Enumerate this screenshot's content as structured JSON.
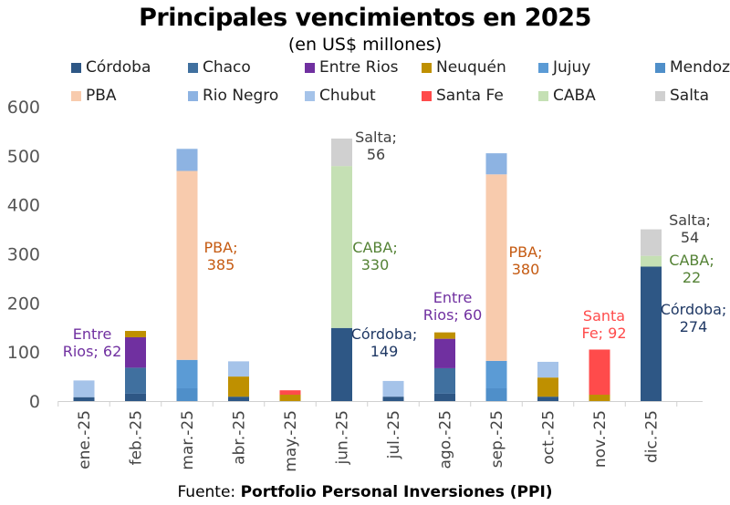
{
  "chart_data": {
    "type": "bar",
    "stacked": true,
    "title": "Principales vencimientos en 2025",
    "subtitle": "(en US$ millones)",
    "source_label": "Fuente: ",
    "source_name": "Portfolio Personal Inversiones (PPI)",
    "categories": [
      "ene.-25",
      "feb.-25",
      "mar.-25",
      "abr.-25",
      "may.-25",
      "jun.-25",
      "jul.-25",
      "ago.-25",
      "sep.-25",
      "oct.-25",
      "nov.-25",
      "dic.-25"
    ],
    "ylim": [
      0,
      600
    ],
    "yticks": [
      0,
      100,
      200,
      300,
      400,
      500,
      600
    ],
    "grid": false,
    "legend_position": "top",
    "series": [
      {
        "name": "Córdoba",
        "color": "#2e5785",
        "values": [
          8,
          15,
          0,
          9,
          0,
          149,
          9,
          15,
          0,
          9,
          0,
          274
        ]
      },
      {
        "name": "Chaco",
        "color": "#40709f",
        "values": [
          0,
          53,
          0,
          0,
          0,
          0,
          0,
          52,
          0,
          0,
          0,
          0
        ]
      },
      {
        "name": "Entre Rios",
        "color": "#7030a0",
        "values": [
          0,
          62,
          0,
          0,
          0,
          0,
          0,
          60,
          0,
          0,
          0,
          0
        ]
      },
      {
        "name": "Neuquén",
        "color": "#bf9000",
        "values": [
          0,
          13,
          0,
          41,
          13,
          0,
          0,
          13,
          0,
          39,
          13,
          0
        ]
      },
      {
        "name": "Jujuy",
        "color": "#5b9bd5",
        "values": [
          0,
          0,
          58,
          0,
          0,
          0,
          0,
          0,
          56,
          0,
          0,
          0
        ]
      },
      {
        "name": "Mendoza",
        "color": "#4f8fc9",
        "values": [
          0,
          0,
          26,
          0,
          0,
          0,
          0,
          0,
          26,
          0,
          0,
          0
        ]
      },
      {
        "name": "PBA",
        "color": "#f8cbad",
        "values": [
          0,
          0,
          385,
          0,
          0,
          0,
          0,
          0,
          380,
          0,
          0,
          0
        ]
      },
      {
        "name": "Rio Negro",
        "color": "#8db3e2",
        "values": [
          0,
          0,
          45,
          0,
          0,
          0,
          0,
          0,
          43,
          0,
          0,
          0
        ]
      },
      {
        "name": "Chubut",
        "color": "#a5c3e9",
        "values": [
          34,
          0,
          0,
          31,
          0,
          0,
          32,
          0,
          0,
          32,
          0,
          0
        ]
      },
      {
        "name": "Santa Fe",
        "color": "#ff4b4b",
        "values": [
          0,
          0,
          0,
          0,
          9,
          0,
          0,
          0,
          0,
          0,
          92,
          0
        ]
      },
      {
        "name": "CABA",
        "color": "#c5e0b4",
        "values": [
          0,
          0,
          0,
          0,
          0,
          330,
          0,
          0,
          0,
          0,
          0,
          22
        ]
      },
      {
        "name": "Salta",
        "color": "#d0d0d0",
        "values": [
          0,
          0,
          0,
          0,
          0,
          56,
          0,
          0,
          0,
          0,
          0,
          54
        ]
      }
    ],
    "stack_order": [
      "Córdoba",
      "Mendoza",
      "Chaco",
      "Jujuy",
      "Entre Rios",
      "Neuquén",
      "PBA",
      "Rio Negro",
      "Chubut",
      "Santa Fe",
      "CABA",
      "Salta"
    ],
    "annotations": [
      {
        "lines": [
          "Entre",
          "Rios; 62"
        ],
        "color": "#7030a0",
        "category": "ene.-25"
      },
      {
        "lines": [
          "PBA;",
          "385"
        ],
        "color": "#c55a11",
        "category": "mar.-25"
      },
      {
        "lines": [
          "Salta;",
          "56"
        ],
        "color": "#404040",
        "category": "jun.-25"
      },
      {
        "lines": [
          "CABA;",
          "330"
        ],
        "color": "#548235",
        "category": "jun.-25"
      },
      {
        "lines": [
          "Córdoba;",
          "149"
        ],
        "color": "#1f3864",
        "category": "jun.-25"
      },
      {
        "lines": [
          "Entre",
          "Rios; 60"
        ],
        "color": "#7030a0",
        "category": "ago.-25"
      },
      {
        "lines": [
          "PBA;",
          "380"
        ],
        "color": "#c55a11",
        "category": "sep.-25"
      },
      {
        "lines": [
          "Santa",
          "Fe; 92"
        ],
        "color": "#ff4b4b",
        "category": "nov.-25"
      },
      {
        "lines": [
          "Salta;",
          "54"
        ],
        "color": "#404040",
        "category": "dic.-25"
      },
      {
        "lines": [
          "CABA;",
          "22"
        ],
        "color": "#548235",
        "category": "dic.-25"
      },
      {
        "lines": [
          "Córdoba;",
          "274"
        ],
        "color": "#1f3864",
        "category": "dic.-25"
      }
    ]
  }
}
